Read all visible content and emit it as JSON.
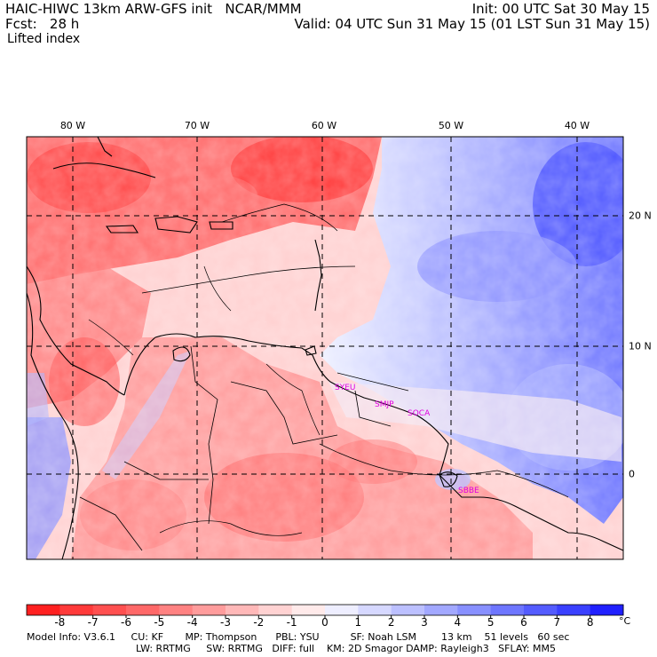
{
  "header": {
    "title_left": "HAIC-HIWC 13km ARW-GFS init   NCAR/MMM",
    "forecast": "Fcst:   28 h",
    "field": "Lifted index",
    "init": "Init: 00 UTC Sat 30 May 15",
    "valid": "Valid: 04 UTC Sun 31 May 15 (01 LST Sun 31 May 15)"
  },
  "map": {
    "lon_labels": [
      "80 W",
      "70 W",
      "60 W",
      "50 W",
      "40 W"
    ],
    "lat_labels": [
      "20 N",
      "10 N",
      "0"
    ],
    "station_labels": [
      "SYEU",
      "SMJP",
      "SOCA",
      "SBBE"
    ],
    "station_color": "#e000e0"
  },
  "colorbar": {
    "labels": [
      "-8",
      "-7",
      "-6",
      "-5",
      "-4",
      "-3",
      "-2",
      "-1",
      "0",
      "1",
      "2",
      "3",
      "4",
      "5",
      "6",
      "7",
      "8"
    ],
    "unit": "°C",
    "colors": [
      "#ff2020",
      "#ff3a3a",
      "#ff5050",
      "#ff6868",
      "#ff8282",
      "#ff9c9c",
      "#ffb8b8",
      "#ffd2d2",
      "#ffeaea",
      "#eeeeff",
      "#d6d8ff",
      "#bcc0ff",
      "#a2a8ff",
      "#8890ff",
      "#6e76ff",
      "#545cff",
      "#3a40ff",
      "#2020ff"
    ]
  },
  "footer": {
    "line1": "Model Info: V3.6.1     CU: KF       MP: Thompson      PBL: YSU          SF: Noah LSM        13 km    51 levels   60 sec",
    "line2": "LW: RRTMG     SW: RRTMG   DIFF: full    KM: 2D Smagor DAMP: Rayleigh3   SFLAY: MM5"
  }
}
